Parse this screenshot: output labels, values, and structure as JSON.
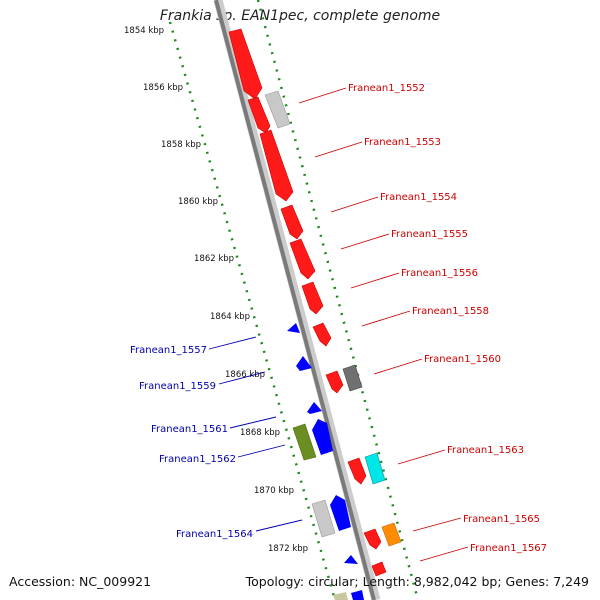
{
  "title": "Frankia sp. EAN1pec, complete genome",
  "footer": {
    "accession": "Accession: NC_009921",
    "summary": "Topology: circular; Length: 8,982,042 bp; Genes: 7,249"
  },
  "colors": {
    "backbone": "#8a8a8a",
    "ruler": "#1a8a1a",
    "forward_label": "#cc0000",
    "reverse_label": "#0000aa"
  },
  "ruler_ticks": [
    {
      "label": "1854 kbp"
    },
    {
      "label": "1856 kbp"
    },
    {
      "label": "1858 kbp"
    },
    {
      "label": "1860 kbp"
    },
    {
      "label": "1862 kbp"
    },
    {
      "label": "1864 kbp"
    },
    {
      "label": "1866 kbp"
    },
    {
      "label": "1868 kbp"
    },
    {
      "label": "1870 kbp"
    },
    {
      "label": "1872 kbp"
    }
  ],
  "labels_forward": [
    "Franean1_1552",
    "Franean1_1553",
    "Franean1_1554",
    "Franean1_1555",
    "Franean1_1556",
    "Franean1_1558",
    "Franean1_1560",
    "Franean1_1563",
    "Franean1_1565",
    "Franean1_1567"
  ],
  "labels_reverse": [
    "Franean1_1557",
    "Franean1_1559",
    "Franean1_1561",
    "Franean1_1562",
    "Franean1_1564"
  ]
}
